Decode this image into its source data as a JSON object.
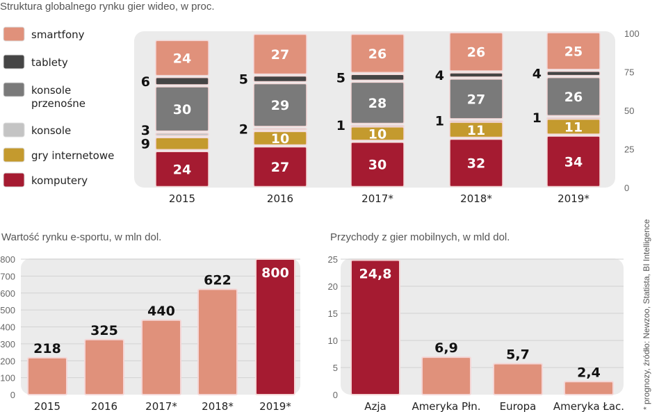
{
  "colors": {
    "smartfony": "#e0917b",
    "tablety": "#454545",
    "konsole_przenosne": "#7a7a7a",
    "konsole": "#c4c4c4",
    "gry_internetowe": "#c49a2e",
    "komputery": "#a51b31",
    "plot_bg": "#ebebeb",
    "grid": "#d2d2d2"
  },
  "source_note": "* prognozy, źródło: Newzoo, Statista, BI Intelligence",
  "chart_data": [
    {
      "type": "bar",
      "stacked": true,
      "title": "Struktura globalnego rynku gier wideo, w proc.",
      "categories": [
        "2015",
        "2016",
        "2017*",
        "2018*",
        "2019*"
      ],
      "ylim": [
        0,
        100
      ],
      "yticks": [
        "0",
        "25",
        "50",
        "75",
        "100"
      ],
      "axis_side": "right",
      "legend_position": "left",
      "series": [
        {
          "key": "komputery",
          "name": "komputery",
          "values": [
            24,
            27,
            30,
            32,
            34
          ],
          "labels": [
            "24",
            "27",
            "30",
            "32",
            "34"
          ]
        },
        {
          "key": "gry_internetowe",
          "name": "gry internetowe",
          "values": [
            9,
            10,
            10,
            11,
            11
          ],
          "labels": [
            "9",
            "10",
            "10",
            "11",
            "11"
          ]
        },
        {
          "key": "konsole",
          "name": "konsole",
          "values": [
            3,
            2,
            1,
            1,
            1
          ],
          "labels": [
            "3",
            "2",
            "1",
            "1",
            "1"
          ]
        },
        {
          "key": "konsole_przenosne",
          "name": "konsole przenośne",
          "name_lines": [
            "konsole",
            "przenośne"
          ],
          "values": [
            30,
            29,
            28,
            27,
            26
          ],
          "labels": [
            "30",
            "29",
            "28",
            "27",
            "26"
          ]
        },
        {
          "key": "tablety",
          "name": "tablety",
          "values": [
            6,
            5,
            5,
            4,
            4
          ],
          "labels": [
            "6",
            "5",
            "5",
            "4",
            "4"
          ]
        },
        {
          "key": "smartfony",
          "name": "smartfony",
          "values": [
            24,
            27,
            26,
            26,
            25
          ],
          "labels": [
            "24",
            "27",
            "26",
            "26",
            "25"
          ]
        }
      ],
      "legend_order": [
        "smartfony",
        "tablety",
        "konsole_przenosne",
        "konsole",
        "gry_internetowe",
        "komputery"
      ]
    },
    {
      "type": "bar",
      "title": "Wartość rynku e-sportu, w mln dol.",
      "categories": [
        "2015",
        "2016",
        "2017*",
        "2018*",
        "2019*"
      ],
      "values": [
        218,
        325,
        440,
        622,
        800
      ],
      "labels": [
        "218",
        "325",
        "440",
        "622",
        "800"
      ],
      "highlight": [
        false,
        false,
        false,
        false,
        true
      ],
      "ylim": [
        0,
        800
      ],
      "yticks": [
        "0",
        "100",
        "200",
        "300",
        "400",
        "500",
        "600",
        "700",
        "800"
      ],
      "grid": true
    },
    {
      "type": "bar",
      "title": "Przychody z gier mobilnych, w mld dol.",
      "categories": [
        "Azja",
        "Ameryka Płn.",
        "Europa",
        "Ameryka Łac."
      ],
      "values": [
        24.8,
        6.9,
        5.7,
        2.4
      ],
      "labels": [
        "24,8",
        "6,9",
        "5,7",
        "2,4"
      ],
      "highlight": [
        true,
        false,
        false,
        false
      ],
      "ylim": [
        0,
        25
      ],
      "yticks": [
        "0",
        "5",
        "10",
        "15",
        "20",
        "25"
      ],
      "grid": true
    }
  ]
}
